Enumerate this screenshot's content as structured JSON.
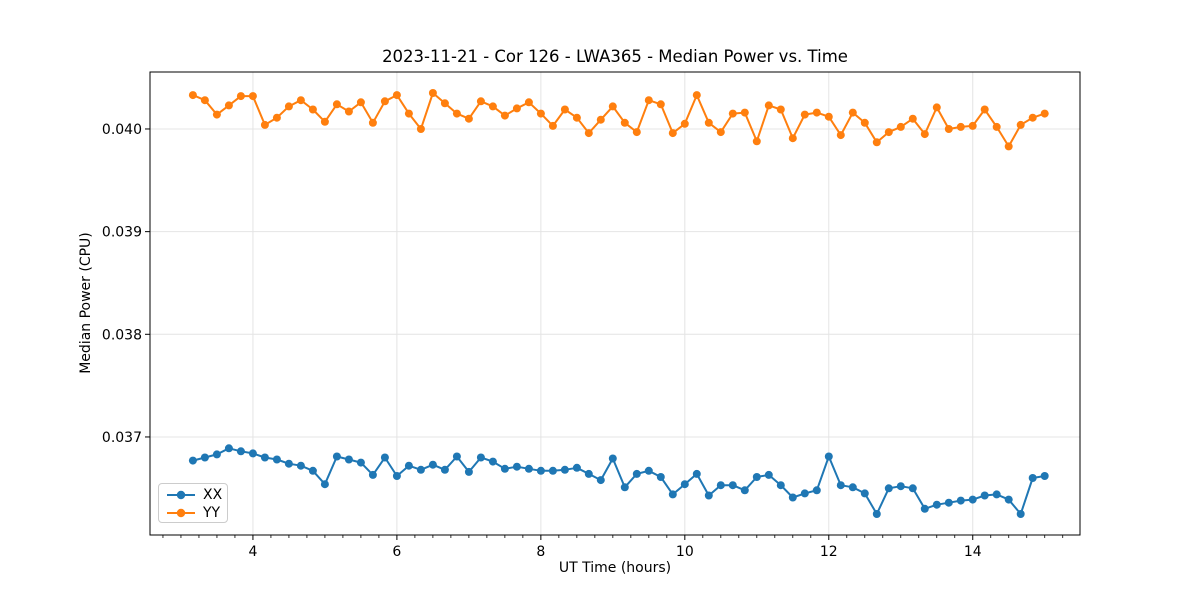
{
  "chart_data": {
    "type": "line",
    "title": "2023-11-21 - Cor 126 - LWA365 - Median Power vs. Time",
    "xlabel": "UT Time (hours)",
    "ylabel": "Median Power (CPU)",
    "xlim": [
      2.57,
      15.49
    ],
    "ylim": [
      0.036045,
      0.040555
    ],
    "xticks": [
      4,
      6,
      8,
      10,
      12,
      14
    ],
    "xtick_labels": [
      "4",
      "6",
      "8",
      "10",
      "12",
      "14"
    ],
    "xminor": {
      "start": 2.75,
      "end": 15.25,
      "step": 0.25
    },
    "yticks": [
      0.037,
      0.038,
      0.039,
      0.04
    ],
    "ytick_labels": [
      "0.037",
      "0.038",
      "0.039",
      "0.040"
    ],
    "grid": true,
    "grid_color": "#e4e4e4",
    "legend_position": "lower left",
    "x_start": 3.166667,
    "x_step": 0.166667,
    "x_end": 15.0,
    "n_points": 72,
    "series": [
      {
        "name": "XX",
        "color": "#1f77b4",
        "marker": "circle",
        "values": [
          0.03677,
          0.0368,
          0.03683,
          0.03689,
          0.03686,
          0.03684,
          0.0368,
          0.03678,
          0.03674,
          0.03672,
          0.03667,
          0.03654,
          0.03681,
          0.03678,
          0.03675,
          0.03663,
          0.0368,
          0.03662,
          0.03672,
          0.03668,
          0.03673,
          0.03668,
          0.03681,
          0.03666,
          0.0368,
          0.03676,
          0.03669,
          0.03671,
          0.03669,
          0.03667,
          0.03667,
          0.03668,
          0.0367,
          0.03664,
          0.03658,
          0.03679,
          0.03651,
          0.03664,
          0.03667,
          0.03661,
          0.03644,
          0.03654,
          0.03664,
          0.03643,
          0.03653,
          0.03653,
          0.03648,
          0.03661,
          0.03663,
          0.03653,
          0.03641,
          0.03645,
          0.03648,
          0.03681,
          0.03653,
          0.03651,
          0.03645,
          0.03625,
          0.0365,
          0.03652,
          0.0365,
          0.0363,
          0.03634,
          0.03636,
          0.03638,
          0.03639,
          0.03643,
          0.03644,
          0.03639,
          0.03625,
          0.0366,
          0.03662
        ]
      },
      {
        "name": "YY",
        "color": "#ff7f0e",
        "marker": "circle",
        "values": [
          0.04033,
          0.04028,
          0.04014,
          0.04023,
          0.04032,
          0.04032,
          0.04004,
          0.04011,
          0.04022,
          0.04028,
          0.04019,
          0.04007,
          0.04024,
          0.04017,
          0.04026,
          0.04006,
          0.04027,
          0.04033,
          0.04015,
          0.04,
          0.04035,
          0.04025,
          0.04015,
          0.0401,
          0.04027,
          0.04022,
          0.04013,
          0.0402,
          0.04026,
          0.04015,
          0.04003,
          0.04019,
          0.04011,
          0.03996,
          0.04009,
          0.04022,
          0.04006,
          0.03997,
          0.04028,
          0.04024,
          0.03996,
          0.04005,
          0.04033,
          0.04006,
          0.03997,
          0.04015,
          0.04016,
          0.03988,
          0.04023,
          0.04019,
          0.03991,
          0.04014,
          0.04016,
          0.04012,
          0.03994,
          0.04016,
          0.04006,
          0.03987,
          0.03997,
          0.04002,
          0.0401,
          0.03995,
          0.04021,
          0.04,
          0.04002,
          0.04003,
          0.04019,
          0.04002,
          0.03983,
          0.04004,
          0.04011,
          0.04015
        ]
      }
    ]
  }
}
